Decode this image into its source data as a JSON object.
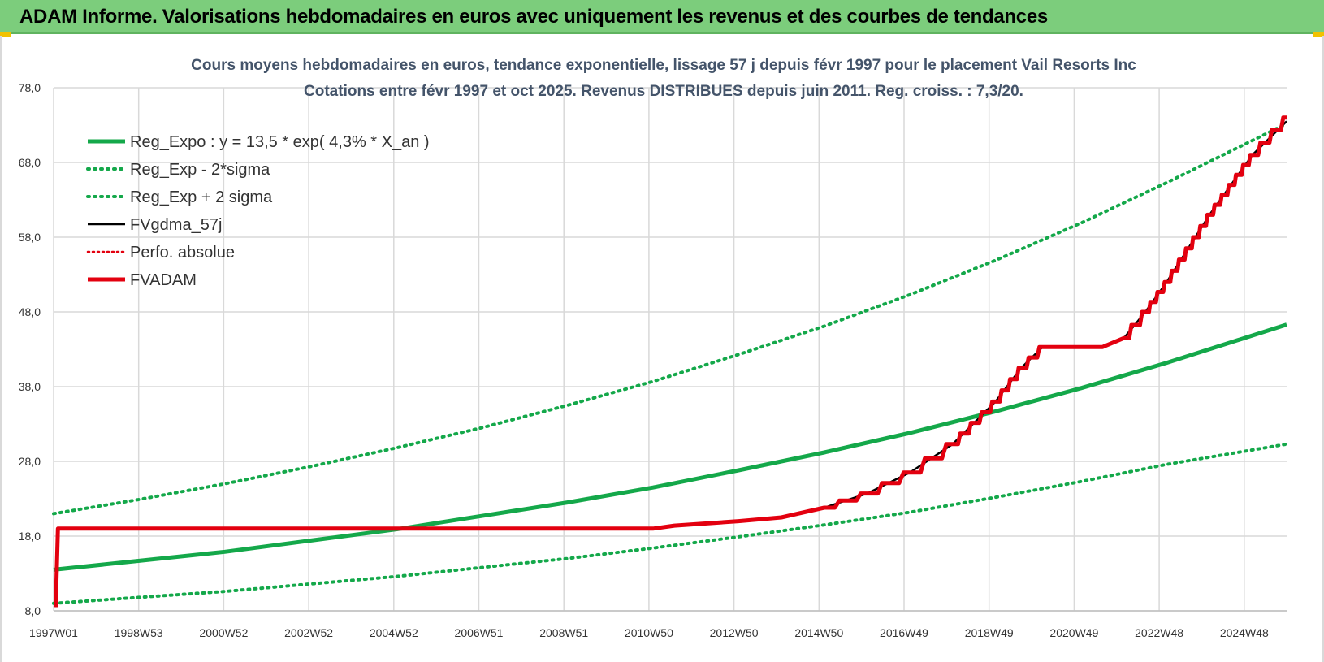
{
  "banner": {
    "title": "ADAM Informe. Valorisations hebdomadaires en euros avec uniquement les revenus et des courbes de tendances"
  },
  "colors": {
    "banner": "#7ccd7c",
    "reg_green": "#14a84a",
    "red": "#e3000f",
    "black": "#000000",
    "grid": "#d9d9d9"
  },
  "chart_data": {
    "type": "line",
    "title": [
      "Cours moyens hebdomadaires en euros, tendance exponentielle, lissage 57 j depuis févr 1997 pour le placement Vail Resorts Inc",
      "Cotations entre févr 1997 et oct 2025. Revenus DISTRIBUES depuis juin 2011. Reg. croiss. : 7,3/20."
    ],
    "x_ticks": [
      "1997W01",
      "1998W53",
      "2000W52",
      "2002W52",
      "2004W52",
      "2006W51",
      "2008W51",
      "2010W50",
      "2012W50",
      "2014W50",
      "2016W49",
      "2018W49",
      "2020W49",
      "2022W48",
      "2024W48"
    ],
    "xlim": [
      1997.0,
      2025.8
    ],
    "y_ticks": [
      "8,0",
      "18,0",
      "28,0",
      "38,0",
      "48,0",
      "58,0",
      "68,0",
      "78,0"
    ],
    "ylim": [
      8,
      78
    ],
    "grid": true,
    "legend_position": "top-left",
    "series": [
      {
        "name": "Reg_Expo : y = 13,5 * exp( 4,3% *  X_an )",
        "style": "solid-thick",
        "color": "#14a84a",
        "points": [
          [
            1997.0,
            13.5
          ],
          [
            1999.0,
            14.7
          ],
          [
            2001.0,
            15.9
          ],
          [
            2003.0,
            17.4
          ],
          [
            2005.0,
            18.9
          ],
          [
            2007.0,
            20.7
          ],
          [
            2009.0,
            22.5
          ],
          [
            2011.0,
            24.5
          ],
          [
            2013.0,
            26.8
          ],
          [
            2015.0,
            29.2
          ],
          [
            2017.0,
            31.8
          ],
          [
            2019.0,
            34.7
          ],
          [
            2021.0,
            37.8
          ],
          [
            2023.0,
            41.2
          ],
          [
            2025.8,
            46.3
          ]
        ]
      },
      {
        "name": "Reg_Exp - 2*sigma",
        "style": "dotted",
        "color": "#14a84a",
        "points": [
          [
            1997.0,
            9.0
          ],
          [
            1999.0,
            9.8
          ],
          [
            2001.0,
            10.6
          ],
          [
            2003.0,
            11.6
          ],
          [
            2005.0,
            12.6
          ],
          [
            2007.0,
            13.8
          ],
          [
            2009.0,
            15.0
          ],
          [
            2011.0,
            16.4
          ],
          [
            2013.0,
            17.9
          ],
          [
            2015.0,
            19.5
          ],
          [
            2017.0,
            21.2
          ],
          [
            2019.0,
            23.2
          ],
          [
            2021.0,
            25.3
          ],
          [
            2023.0,
            27.6
          ],
          [
            2025.8,
            30.3
          ]
        ]
      },
      {
        "name": "Reg_Exp + 2 sigma",
        "style": "dotted",
        "color": "#14a84a",
        "points": [
          [
            1997.0,
            21.0
          ],
          [
            1999.0,
            22.9
          ],
          [
            2001.0,
            25.0
          ],
          [
            2003.0,
            27.3
          ],
          [
            2005.0,
            29.8
          ],
          [
            2007.0,
            32.5
          ],
          [
            2009.0,
            35.5
          ],
          [
            2011.0,
            38.7
          ],
          [
            2013.0,
            42.3
          ],
          [
            2015.0,
            46.1
          ],
          [
            2017.0,
            50.3
          ],
          [
            2019.0,
            54.9
          ],
          [
            2021.0,
            59.9
          ],
          [
            2023.0,
            65.3
          ],
          [
            2025.8,
            73.2
          ]
        ]
      },
      {
        "name": "FVgdma_57j",
        "style": "solid",
        "color": "#000000",
        "points": [
          [
            1997.05,
            8.5
          ],
          [
            1997.1,
            19.0
          ],
          [
            2011.0,
            19.0
          ],
          [
            2011.5,
            19.4
          ],
          [
            2013.0,
            20.0
          ],
          [
            2014.0,
            20.5
          ],
          [
            2015.0,
            21.8
          ],
          [
            2016.0,
            23.7
          ],
          [
            2017.0,
            26.5
          ],
          [
            2018.0,
            30.3
          ],
          [
            2019.0,
            36.0
          ],
          [
            2019.6,
            40.5
          ],
          [
            2020.1,
            43.3
          ],
          [
            2021.5,
            43.3
          ],
          [
            2022.0,
            44.5
          ],
          [
            2022.5,
            48.0
          ],
          [
            2023.0,
            52.0
          ],
          [
            2023.5,
            56.5
          ],
          [
            2024.0,
            61.0
          ],
          [
            2024.5,
            65.0
          ],
          [
            2025.0,
            69.0
          ],
          [
            2025.8,
            73.5
          ]
        ]
      },
      {
        "name": "Perfo. absolue",
        "style": "dotted",
        "color": "#e3000f",
        "points": []
      },
      {
        "name": "FVADAM",
        "style": "solid-thick-stepped",
        "color": "#e3000f",
        "points": [
          [
            1997.05,
            8.5
          ],
          [
            1997.1,
            19.0
          ],
          [
            2011.0,
            19.0
          ],
          [
            2011.5,
            19.4
          ],
          [
            2013.0,
            20.0
          ],
          [
            2014.0,
            20.5
          ],
          [
            2015.0,
            21.8
          ],
          [
            2016.0,
            23.7
          ],
          [
            2017.0,
            26.5
          ],
          [
            2018.0,
            30.3
          ],
          [
            2019.0,
            36.0
          ],
          [
            2019.6,
            40.5
          ],
          [
            2020.1,
            43.3
          ],
          [
            2021.5,
            43.3
          ],
          [
            2022.0,
            44.5
          ],
          [
            2022.5,
            48.0
          ],
          [
            2023.0,
            52.0
          ],
          [
            2023.5,
            56.5
          ],
          [
            2024.0,
            61.0
          ],
          [
            2024.5,
            65.0
          ],
          [
            2025.0,
            69.0
          ],
          [
            2025.8,
            74.0
          ]
        ]
      }
    ]
  }
}
